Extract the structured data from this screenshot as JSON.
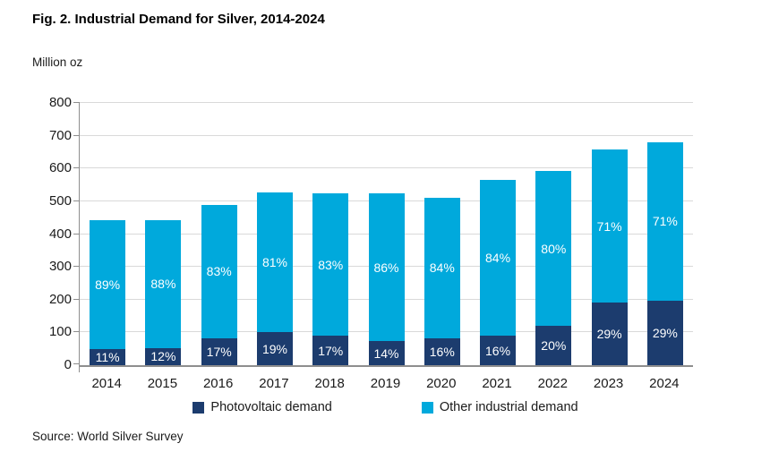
{
  "chart_data": {
    "type": "bar",
    "stacked": true,
    "title": "Fig. 2. Industrial Demand for Silver, 2014-2024",
    "unit_label": "Million oz",
    "source": "Source: World Silver Survey",
    "categories": [
      "2014",
      "2015",
      "2016",
      "2017",
      "2018",
      "2019",
      "2020",
      "2021",
      "2022",
      "2023",
      "2024"
    ],
    "series": [
      {
        "name": "Photovoltaic demand",
        "color": "#1C3C6E",
        "values": [
          49,
          53,
          83,
          100,
          89,
          73,
          82,
          90,
          119,
          191,
          197
        ],
        "percent_labels": [
          "11%",
          "12%",
          "17%",
          "19%",
          "17%",
          "14%",
          "16%",
          "16%",
          "20%",
          "29%",
          "29%"
        ]
      },
      {
        "name": "Other industrial demand",
        "color": "#00A9DC",
        "values": [
          392,
          390,
          407,
          427,
          436,
          450,
          429,
          474,
          474,
          466,
          483
        ],
        "percent_labels": [
          "89%",
          "88%",
          "83%",
          "81%",
          "83%",
          "86%",
          "84%",
          "84%",
          "80%",
          "71%",
          "71%"
        ]
      }
    ],
    "totals": [
      441,
      443,
      490,
      527,
      525,
      523,
      511,
      564,
      593,
      657,
      680
    ],
    "ylabel": "Million oz",
    "ylim": [
      0,
      800
    ],
    "ytick_interval": 100,
    "grid": true,
    "legend_position": "bottom",
    "value_label_color": "#FFFFFF",
    "axis_color": "#8E8E8E",
    "gridline_color": "#D9D9D9"
  }
}
